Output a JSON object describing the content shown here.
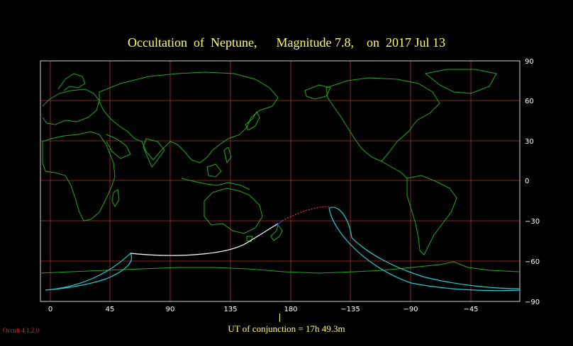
{
  "title": "Occultation  of  Neptune,      Magnitude 7.8,    on  2017 Jul 13",
  "conjunction_label": "UT of conjunction = 17h 49.3m",
  "version_label": "Occult 4.1.2.0",
  "colors": {
    "background": "#000000",
    "grid": "#b03030",
    "frame": "#d0d0d0",
    "coast": "#1faa1f",
    "path_visible": "#20d0d0",
    "central_daylight": "#ffffff",
    "central_night": "#ff3030",
    "central_twilight": "#3040ff",
    "title": "#ffff66",
    "axis_text": "#ffffff",
    "version": "#ff2222"
  },
  "map": {
    "projection": "equirectangular",
    "center_longitude": 170,
    "longitude_ticks": [
      "0",
      "45",
      "90",
      "135",
      "180",
      "−135",
      "−90",
      "−45"
    ],
    "latitude_ticks": [
      "90",
      "60",
      "30",
      "0",
      "−30",
      "−60",
      "−90"
    ]
  }
}
